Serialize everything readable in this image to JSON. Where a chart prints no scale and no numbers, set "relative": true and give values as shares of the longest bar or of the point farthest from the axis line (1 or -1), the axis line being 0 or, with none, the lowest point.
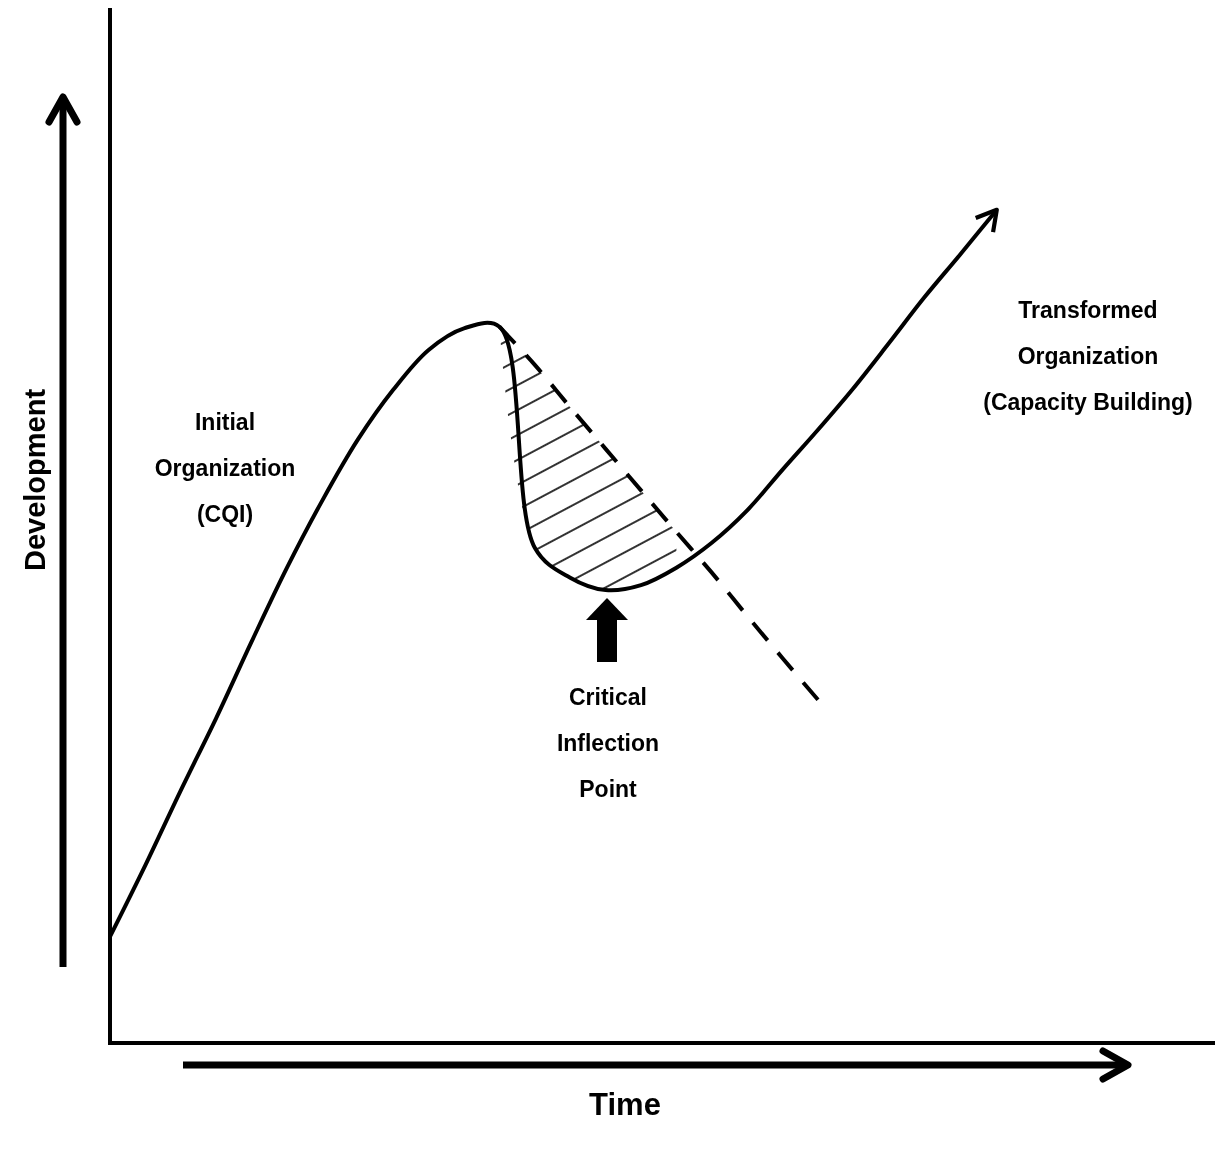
{
  "chart_data": {
    "type": "line",
    "relative": true,
    "xlabel": "Time",
    "ylabel": "Development",
    "categories": [
      null,
      null,
      null,
      null,
      null,
      null,
      null,
      null,
      null,
      null,
      null,
      null,
      null,
      null,
      null,
      null,
      null,
      null,
      null,
      null,
      null,
      null,
      null,
      null,
      null,
      null,
      null,
      null,
      null,
      null,
      null,
      null
    ],
    "series": [
      {
        "color": "#000000",
        "line_style": "solid",
        "values": [
          0.128,
          0.214,
          0.304,
          0.391,
          0.483,
          0.572,
          0.653,
          0.726,
          0.786,
          0.834,
          0.86,
          0.862,
          0.596,
          0.56,
          0.545,
          0.551,
          0.572,
          0.602,
          0.641,
          0.69,
          0.738,
          0.788,
          0.842,
          0.897,
          0.948,
          1,
          null,
          null,
          null,
          null,
          null,
          null
        ]
      },
      {
        "color": "#000000",
        "line_style": "dashed",
        "values": [
          null,
          null,
          null,
          null,
          null,
          null,
          null,
          null,
          null,
          null,
          null,
          0.862,
          0.816,
          0.765,
          0.715,
          0.665,
          0.615,
          0.566,
          0.514,
          0.463,
          0.413,
          null,
          null,
          null,
          null,
          null,
          null,
          null,
          null,
          null,
          null,
          null
        ],
        "lower": [
          null,
          null,
          null,
          null,
          null,
          null,
          null,
          null,
          null,
          null,
          null,
          0.862,
          0.596,
          0.56,
          0.545,
          0.551,
          0.572,
          null,
          null,
          null,
          null,
          null,
          null,
          null,
          null,
          null,
          null,
          null,
          null,
          null,
          null,
          null
        ],
        "upper": [
          null,
          null,
          null,
          null,
          null,
          null,
          null,
          null,
          null,
          null,
          null,
          0.862,
          0.816,
          0.765,
          0.715,
          0.665,
          0.615,
          null,
          null,
          null,
          null,
          null,
          null,
          null,
          null,
          null,
          null,
          null,
          null,
          null,
          null,
          null
        ]
      }
    ],
    "annotations": [
      "Initial Organization (CQI)",
      "Transformed Organization (Capacity Building)",
      "Critical Inflection Point"
    ]
  }
}
